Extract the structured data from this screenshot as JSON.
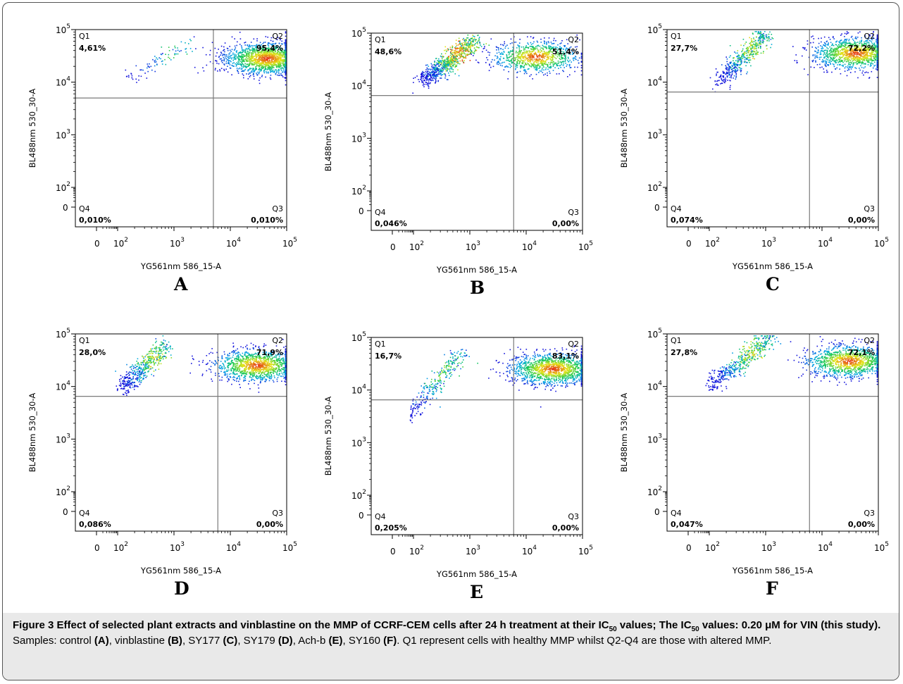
{
  "colors": {
    "quadrant_line": "#7a7a7a",
    "frame": "#555555",
    "caption_bg": "#e9e9e9",
    "axis": "#000000"
  },
  "chart_data": [
    {
      "type": "scatter",
      "subtype": "flow-cytometry density dot plot",
      "panel_label": "A",
      "xlabel": "YG561nm 586_15-A",
      "ylabel": "BL488nm 530_30-A",
      "x_scale": "biexponential",
      "y_scale": "biexponential",
      "x_ticks": [
        "0",
        "10^2",
        "10^3",
        "10^4",
        "10^5"
      ],
      "y_ticks": [
        "0",
        "10^2",
        "10^3",
        "10^4",
        "10^5"
      ],
      "quadrant_gate": {
        "x": 5000,
        "y": 5000
      },
      "quadrants": [
        {
          "name": "Q1",
          "value": "4,61%"
        },
        {
          "name": "Q2",
          "value": "95,4%"
        },
        {
          "name": "Q3",
          "value": "0,010%"
        },
        {
          "name": "Q4",
          "value": "0,010%"
        }
      ],
      "populations": [
        {
          "x_from": 150,
          "x_to": 2000,
          "y_from": 12000,
          "y_to": 55000,
          "share": 0.05
        },
        {
          "x_center": 45000,
          "y_center": 28000,
          "share": 0.95
        }
      ]
    },
    {
      "type": "scatter",
      "subtype": "flow-cytometry density dot plot",
      "panel_label": "B",
      "xlabel": "YG561nm 586_15-A",
      "ylabel": "BL488nm 530_30-A",
      "x_scale": "biexponential",
      "y_scale": "biexponential",
      "x_ticks": [
        "0",
        "10^2",
        "10^3",
        "10^4",
        "10^5"
      ],
      "y_ticks": [
        "0",
        "10^2",
        "10^3",
        "10^4",
        "10^5"
      ],
      "quadrant_gate": {
        "x": 6000,
        "y": 6500
      },
      "quadrants": [
        {
          "name": "Q1",
          "value": "48,6%"
        },
        {
          "name": "Q2",
          "value": "51,4%"
        },
        {
          "name": "Q3",
          "value": "0,00%"
        },
        {
          "name": "Q4",
          "value": "0,046%"
        }
      ],
      "populations": [
        {
          "x_from": 150,
          "x_to": 1200,
          "y_from": 12000,
          "y_to": 70000,
          "share": 0.49
        },
        {
          "x_center": 15000,
          "y_center": 35000,
          "share": 0.51
        }
      ]
    },
    {
      "type": "scatter",
      "subtype": "flow-cytometry density dot plot",
      "panel_label": "C",
      "xlabel": "YG561nm 586_15-A",
      "ylabel": "BL488nm 530_30-A",
      "x_scale": "biexponential",
      "y_scale": "biexponential",
      "x_ticks": [
        "0",
        "10^2",
        "10^3",
        "10^4",
        "10^5"
      ],
      "y_ticks": [
        "0",
        "10^2",
        "10^3",
        "10^4",
        "10^5"
      ],
      "quadrant_gate": {
        "x": 6000,
        "y": 6500
      },
      "quadrants": [
        {
          "name": "Q1",
          "value": "27,7%"
        },
        {
          "name": "Q2",
          "value": "72,2%"
        },
        {
          "name": "Q3",
          "value": "0,00%"
        },
        {
          "name": "Q4",
          "value": "0,074%"
        }
      ],
      "populations": [
        {
          "x_from": 150,
          "x_to": 1000,
          "y_from": 10000,
          "y_to": 80000,
          "share": 0.28
        },
        {
          "x_center": 40000,
          "y_center": 35000,
          "share": 0.72
        }
      ]
    },
    {
      "type": "scatter",
      "subtype": "flow-cytometry density dot plot",
      "panel_label": "D",
      "xlabel": "YG561nm 586_15-A",
      "ylabel": "BL488nm 530_30-A",
      "x_scale": "biexponential",
      "y_scale": "biexponential",
      "x_ticks": [
        "0",
        "10^2",
        "10^3",
        "10^4",
        "10^5"
      ],
      "y_ticks": [
        "0",
        "10^2",
        "10^3",
        "10^4",
        "10^5"
      ],
      "quadrant_gate": {
        "x": 6000,
        "y": 6500
      },
      "quadrants": [
        {
          "name": "Q1",
          "value": "28,0%"
        },
        {
          "name": "Q2",
          "value": "71,9%"
        },
        {
          "name": "Q3",
          "value": "0,00%"
        },
        {
          "name": "Q4",
          "value": "0,086%"
        }
      ],
      "populations": [
        {
          "x_from": 120,
          "x_to": 700,
          "y_from": 9000,
          "y_to": 60000,
          "share": 0.28
        },
        {
          "x_center": 30000,
          "y_center": 25000,
          "share": 0.72
        }
      ]
    },
    {
      "type": "scatter",
      "subtype": "flow-cytometry density dot plot",
      "panel_label": "E",
      "xlabel": "YG561nm 586_15-A",
      "ylabel": "BL488nm 530_30-A",
      "x_scale": "biexponential",
      "y_scale": "biexponential",
      "x_ticks": [
        "0",
        "10^2",
        "10^3",
        "10^4",
        "10^5"
      ],
      "y_ticks": [
        "0",
        "10^2",
        "10^3",
        "10^4",
        "10^5"
      ],
      "quadrant_gate": {
        "x": 6000,
        "y": 6500
      },
      "quadrants": [
        {
          "name": "Q1",
          "value": "16,7%"
        },
        {
          "name": "Q2",
          "value": "83,1%"
        },
        {
          "name": "Q3",
          "value": "0,00%"
        },
        {
          "name": "Q4",
          "value": "0,205%"
        }
      ],
      "populations": [
        {
          "x_from": 80,
          "x_to": 700,
          "y_from": 3000,
          "y_to": 50000,
          "share": 0.17
        },
        {
          "x_center": 30000,
          "y_center": 25000,
          "share": 0.83
        }
      ]
    },
    {
      "type": "scatter",
      "subtype": "flow-cytometry density dot plot",
      "panel_label": "F",
      "xlabel": "YG561nm 586_15-A",
      "ylabel": "BL488nm 530_30-A",
      "x_scale": "biexponential",
      "y_scale": "biexponential",
      "x_ticks": [
        "0",
        "10^2",
        "10^3",
        "10^4",
        "10^5"
      ],
      "y_ticks": [
        "0",
        "10^2",
        "10^3",
        "10^4",
        "10^5"
      ],
      "quadrant_gate": {
        "x": 6000,
        "y": 6500
      },
      "quadrants": [
        {
          "name": "Q1",
          "value": "27,8%"
        },
        {
          "name": "Q2",
          "value": "72,1%"
        },
        {
          "name": "Q3",
          "value": "0,00%"
        },
        {
          "name": "Q4",
          "value": "0,047%"
        }
      ],
      "populations": [
        {
          "x_from": 100,
          "x_to": 1200,
          "y_from": 10000,
          "y_to": 80000,
          "share": 0.28
        },
        {
          "x_center": 30000,
          "y_center": 30000,
          "share": 0.72
        }
      ]
    }
  ],
  "caption": {
    "title_part1": "Figure 3 Effect of selected plant extracts and vinblastine on the MMP of CCRF-CEM cells after 24 h treatment at their IC",
    "sub_50": "50",
    "title_part2": " values; The IC",
    "title_part3": " values: 0.20 μM for VIN (this study).",
    "samples_intro": " Samples: control ",
    "label_A": "(A)",
    "sample_B": ", vinblastine ",
    "label_B": "(B)",
    "sample_C": ", SY177 ",
    "label_C": "(C)",
    "sample_D": ", SY179 ",
    "label_D": "(D)",
    "sample_E": ", Ach-b ",
    "label_E": "(E)",
    "sample_F": ", SY160 ",
    "label_F": "(F)",
    "closing": ". Q1 represent cells with healthy MMP whilst Q2-Q4 are those with altered MMP."
  }
}
